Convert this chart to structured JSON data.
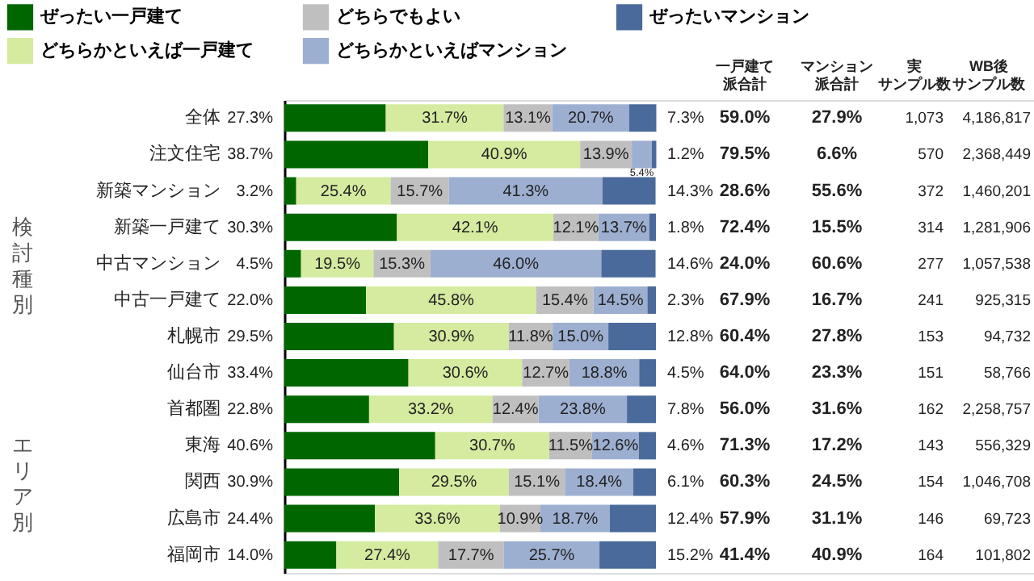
{
  "chart_data": {
    "type": "bar",
    "orientation": "horizontal",
    "stacked": true,
    "legend": "top left",
    "tick_labels": "y",
    "categories": [
      "全体",
      "注文住宅",
      "新築マンション",
      "新築一戸建て",
      "中古マンション",
      "中古一戸建て",
      "札幌市",
      "仙台市",
      "首都圏",
      "東海",
      "関西",
      "広島市",
      "福岡市"
    ],
    "series": [
      {
        "name": "ぜったい一戸建て",
        "color": "#006600",
        "values": [
          27.3,
          38.7,
          3.2,
          30.3,
          4.5,
          22.0,
          29.5,
          33.4,
          22.8,
          40.6,
          30.9,
          24.4,
          14.0
        ],
        "value_labels": [
          "27.3%",
          "38.7%",
          "3.2%",
          "30.3%",
          "4.5%",
          "22.0%",
          "29.5%",
          "33.4%",
          "22.8%",
          "40.6%",
          "30.9%",
          "24.4%",
          "14.0%"
        ]
      },
      {
        "name": "どちらかといえば一戸建て",
        "color": "#d5eba0",
        "values": [
          31.7,
          40.9,
          25.4,
          42.1,
          19.5,
          45.8,
          30.9,
          30.6,
          33.2,
          30.7,
          29.5,
          33.6,
          27.4
        ],
        "value_labels": [
          "31.7%",
          "40.9%",
          "25.4%",
          "42.1%",
          "19.5%",
          "45.8%",
          "30.9%",
          "30.6%",
          "33.2%",
          "30.7%",
          "29.5%",
          "33.6%",
          "27.4%"
        ]
      },
      {
        "name": "どちらでもよい",
        "color": "#bfbfbf",
        "values": [
          13.1,
          13.9,
          15.7,
          12.1,
          15.3,
          15.4,
          11.8,
          12.7,
          12.4,
          11.5,
          15.1,
          10.9,
          17.7
        ],
        "value_labels": [
          "13.1%",
          "13.9%",
          "15.7%",
          "12.1%",
          "15.3%",
          "15.4%",
          "11.8%",
          "12.7%",
          "12.4%",
          "11.5%",
          "15.1%",
          "10.9%",
          "17.7%"
        ]
      },
      {
        "name": "どちらかといえばマンション",
        "color": "#9dafd0",
        "values": [
          20.7,
          5.4,
          41.3,
          13.7,
          46.0,
          14.5,
          15.0,
          18.8,
          23.8,
          12.6,
          18.4,
          18.7,
          25.7
        ],
        "value_labels": [
          "20.7%",
          "5.4%",
          "41.3%",
          "13.7%",
          "46.0%",
          "14.5%",
          "15.0%",
          "18.8%",
          "23.8%",
          "12.6%",
          "18.4%",
          "18.7%",
          "25.7%"
        ]
      },
      {
        "name": "ぜったいマンション",
        "color": "#4a6a9b",
        "values": [
          7.3,
          1.2,
          14.3,
          1.8,
          14.6,
          2.3,
          12.8,
          4.5,
          7.8,
          4.6,
          6.1,
          12.4,
          15.2
        ],
        "value_labels": [
          "7.3%",
          "1.2%",
          "14.3%",
          "1.8%",
          "14.6%",
          "2.3%",
          "12.8%",
          "4.5%",
          "7.8%",
          "4.6%",
          "6.1%",
          "12.4%",
          "15.2%"
        ]
      }
    ],
    "annotations": [
      "検討種別",
      "エリア別",
      "一戸建て",
      "派合計",
      "マンション",
      "派合計",
      "実",
      "サンプル数",
      "WB後",
      "サンプル数",
      "59.0%",
      "27.9%",
      "1,073",
      "4,186,817",
      "79.5%",
      "6.6%",
      "570",
      "2,368,449",
      "28.6%",
      "55.6%",
      "372",
      "1,460,201",
      "72.4%",
      "15.5%",
      "314",
      "1,281,906",
      "24.0%",
      "60.6%",
      "277",
      "1,057,538",
      "67.9%",
      "16.7%",
      "241",
      "925,315",
      "60.4%",
      "27.8%",
      "153",
      "94,732",
      "64.0%",
      "23.3%",
      "151",
      "58,766",
      "56.0%",
      "31.6%",
      "162",
      "2,258,757",
      "71.3%",
      "17.2%",
      "143",
      "556,329",
      "60.3%",
      "24.5%",
      "154",
      "1,046,708",
      "57.9%",
      "31.1%",
      "146",
      "69,723",
      "41.4%",
      "40.9%",
      "164",
      "101,802"
    ]
  }
}
